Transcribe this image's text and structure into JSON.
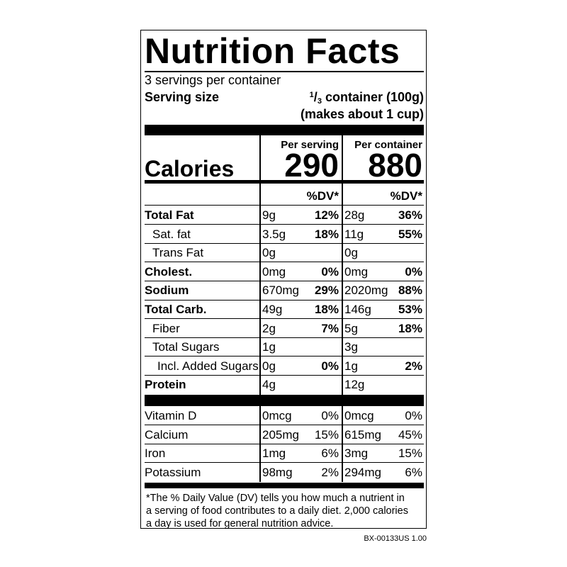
{
  "header": {
    "title": "Nutrition Facts",
    "servings": "3 servings per container",
    "serving_size_label": "Serving size",
    "serving_size_amount": {
      "numerator": "1",
      "denominator": "3",
      "text": "container (100g)"
    },
    "serving_size_note": "(makes about 1 cup)"
  },
  "calories": {
    "label": "Calories",
    "columns": [
      {
        "heading": "Per serving",
        "value": 290
      },
      {
        "heading": "Per container",
        "value": 880
      }
    ]
  },
  "dv_heading": [
    "%DV*",
    "%DV*"
  ],
  "nutrients": [
    {
      "name": "Total Fat",
      "bold": true,
      "indent": 0,
      "cells": [
        [
          "9g",
          "12%"
        ],
        [
          "28g",
          "36%"
        ]
      ]
    },
    {
      "name": "Sat. fat",
      "bold": false,
      "indent": 1,
      "cells": [
        [
          "3.5g",
          "18%"
        ],
        [
          "11g",
          "55%"
        ]
      ]
    },
    {
      "name": "Trans Fat",
      "bold": false,
      "indent": 1,
      "cells": [
        [
          "0g",
          null
        ],
        [
          "0g",
          null
        ]
      ]
    },
    {
      "name": "Cholest.",
      "bold": true,
      "indent": 0,
      "cells": [
        [
          "0mg",
          "0%"
        ],
        [
          "0mg",
          "0%"
        ]
      ]
    },
    {
      "name": "Sodium",
      "bold": true,
      "indent": 0,
      "cells": [
        [
          "670mg",
          "29%"
        ],
        [
          "2020mg",
          "88%"
        ]
      ]
    },
    {
      "name": "Total Carb.",
      "bold": true,
      "indent": 0,
      "cells": [
        [
          "49g",
          "18%"
        ],
        [
          "146g",
          "53%"
        ]
      ]
    },
    {
      "name": "Fiber",
      "bold": false,
      "indent": 1,
      "cells": [
        [
          "2g",
          "7%"
        ],
        [
          "5g",
          "18%"
        ]
      ]
    },
    {
      "name": "Total Sugars",
      "bold": false,
      "indent": 1,
      "cells": [
        [
          "1g",
          null
        ],
        [
          "3g",
          null
        ]
      ]
    },
    {
      "name": "Incl. Added Sugars",
      "bold": false,
      "indent": 2,
      "cells": [
        [
          "0g",
          "0%"
        ],
        [
          "1g",
          "2%"
        ]
      ]
    },
    {
      "name": "Protein",
      "bold": true,
      "indent": 0,
      "cells": [
        [
          "4g",
          null
        ],
        [
          "12g",
          null
        ]
      ]
    }
  ],
  "vitamins": [
    {
      "name": "Vitamin D",
      "cells": [
        [
          "0mcg",
          "0%"
        ],
        [
          "0mcg",
          "0%"
        ]
      ]
    },
    {
      "name": "Calcium",
      "cells": [
        [
          "205mg",
          "15%"
        ],
        [
          "615mg",
          "45%"
        ]
      ]
    },
    {
      "name": "Iron",
      "cells": [
        [
          "1mg",
          "6%"
        ],
        [
          "3mg",
          "15%"
        ]
      ]
    },
    {
      "name": "Potassium",
      "cells": [
        [
          "98mg",
          "2%"
        ],
        [
          "294mg",
          "6%"
        ]
      ]
    }
  ],
  "footnote": [
    "*The % Daily Value (DV) tells you how much a nutrient in",
    "a serving of food contributes to a daily diet. 2,000 calories",
    "a day is used for general nutrition advice."
  ],
  "code": "BX-00133US 1.00"
}
